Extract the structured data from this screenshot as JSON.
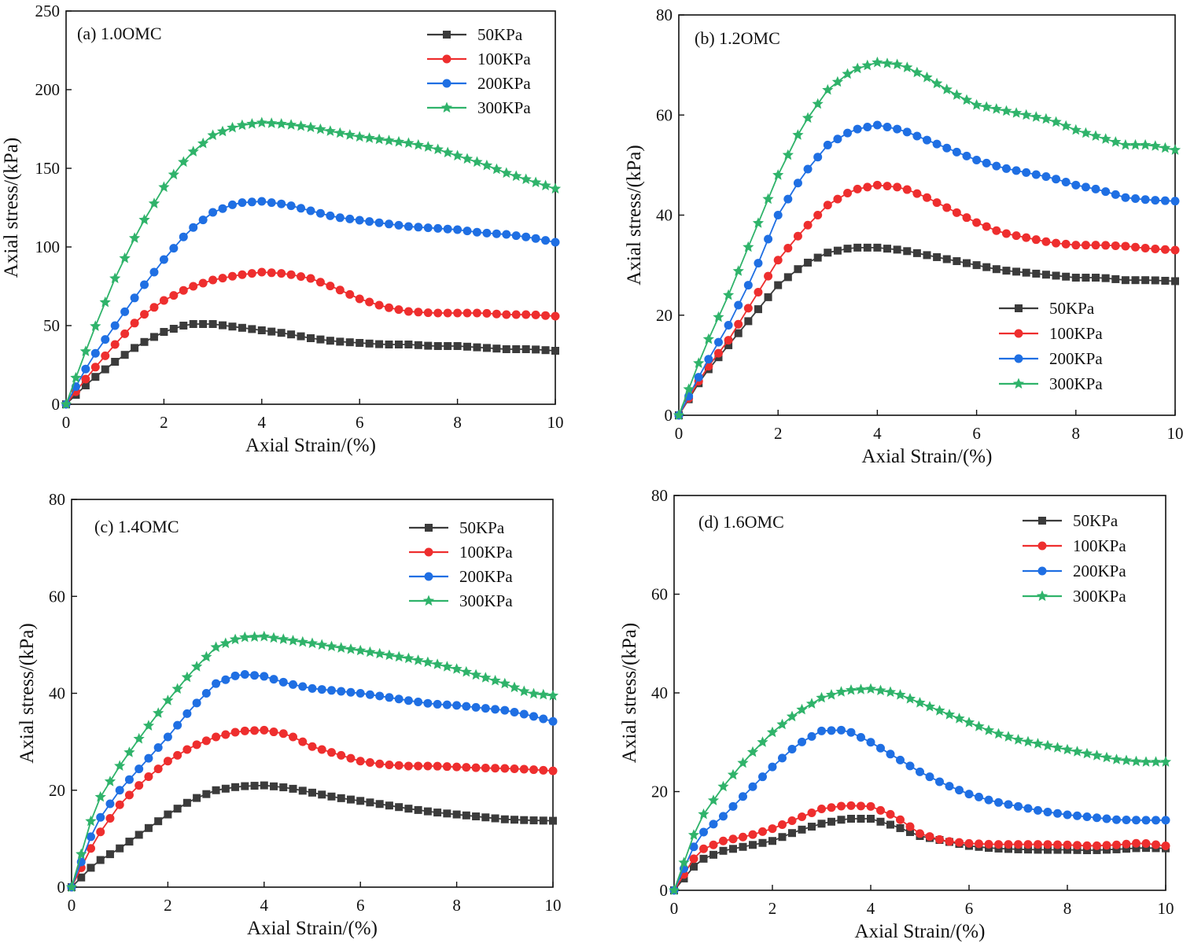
{
  "colors": {
    "50KPa": "#3b3b3b",
    "100KPa": "#ee2e2e",
    "200KPa": "#1f6fe3",
    "300KPa": "#2fb36a"
  },
  "chart_data": [
    {
      "type": "line",
      "panel_label": "(a) 1.0OMC",
      "xlabel": "Axial Strain/(%)",
      "ylabel": "Axial stress/(kPa)",
      "xlim": [
        0,
        10
      ],
      "ylim": [
        0,
        250
      ],
      "x_ticks": [
        0,
        2,
        4,
        6,
        8,
        10
      ],
      "y_ticks": [
        0,
        50,
        100,
        150,
        200,
        250
      ],
      "legend_position": "top-right",
      "x": [
        0,
        0.5,
        1,
        1.5,
        2,
        2.5,
        3,
        3.5,
        4,
        4.5,
        5,
        5.5,
        6,
        6.5,
        7,
        7.5,
        8,
        8.5,
        9,
        9.5,
        10
      ],
      "series": [
        {
          "name": "50KPa",
          "marker": "square",
          "values": [
            0,
            15,
            27,
            38,
            46,
            51,
            51,
            49,
            47,
            45,
            42,
            40,
            39,
            38,
            38,
            37,
            37,
            36,
            35,
            35,
            34
          ]
        },
        {
          "name": "100KPa",
          "marker": "circle",
          "values": [
            0,
            20,
            38,
            55,
            66,
            74,
            79,
            82,
            84,
            83,
            80,
            74,
            67,
            62,
            59,
            58,
            58,
            58,
            57,
            57,
            56
          ]
        },
        {
          "name": "200KPa",
          "marker": "circle",
          "values": [
            0,
            28,
            50,
            72,
            92,
            110,
            122,
            128,
            129,
            127,
            123,
            119,
            117,
            115,
            113,
            112,
            111,
            109,
            108,
            106,
            103
          ]
        },
        {
          "name": "300KPa",
          "marker": "star",
          "values": [
            0,
            42,
            80,
            112,
            138,
            158,
            171,
            177,
            179,
            178,
            176,
            173,
            170,
            168,
            166,
            163,
            158,
            153,
            147,
            142,
            137
          ]
        }
      ]
    },
    {
      "type": "line",
      "panel_label": "(b) 1.2OMC",
      "xlabel": "Axial Strain/(%)",
      "ylabel": "Axial stress/(kPa)",
      "xlim": [
        0,
        10
      ],
      "ylim": [
        0,
        80
      ],
      "x_ticks": [
        0,
        2,
        4,
        6,
        8,
        10
      ],
      "y_ticks": [
        0,
        20,
        40,
        60,
        80
      ],
      "legend_position": "bottom-right",
      "x": [
        0,
        0.5,
        1,
        1.5,
        2,
        2.5,
        3,
        3.5,
        4,
        4.5,
        5,
        5.5,
        6,
        6.5,
        7,
        7.5,
        8,
        8.5,
        9,
        9.5,
        10
      ],
      "series": [
        {
          "name": "50KPa",
          "marker": "square",
          "values": [
            0,
            8,
            14,
            20,
            26,
            30,
            32.5,
            33.5,
            33.5,
            33,
            32,
            31,
            30,
            29,
            28.5,
            28,
            27.5,
            27.5,
            27,
            27,
            26.8
          ]
        },
        {
          "name": "100KPa",
          "marker": "circle",
          "values": [
            0,
            8.5,
            15,
            23,
            31,
            37,
            42,
            45,
            46,
            45.5,
            43.5,
            41,
            38.5,
            36.5,
            35.5,
            34.5,
            34,
            34,
            33.8,
            33.3,
            33
          ]
        },
        {
          "name": "200KPa",
          "marker": "circle",
          "values": [
            0,
            9.5,
            18,
            28,
            40,
            48,
            54,
            57,
            58,
            57,
            55,
            53,
            51,
            49.5,
            48.5,
            47.5,
            46,
            45,
            43.5,
            43,
            42.8
          ]
        },
        {
          "name": "300KPa",
          "marker": "star",
          "values": [
            0,
            13,
            24,
            36,
            48,
            58,
            65,
            69,
            70.5,
            70,
            67.5,
            64.5,
            62,
            61,
            60,
            59,
            57,
            55.5,
            54,
            54,
            53
          ]
        }
      ]
    },
    {
      "type": "line",
      "panel_label": "(c) 1.4OMC",
      "xlabel": "Axial Strain/(%)",
      "ylabel": "Axial stress/(kPa)",
      "xlim": [
        0,
        10
      ],
      "ylim": [
        0,
        80
      ],
      "x_ticks": [
        0,
        2,
        4,
        6,
        8,
        10
      ],
      "y_ticks": [
        0,
        20,
        40,
        60,
        80
      ],
      "legend_position": "top-right",
      "x": [
        0,
        0.5,
        1,
        1.5,
        2,
        2.5,
        3,
        3.5,
        4,
        4.5,
        5,
        5.5,
        6,
        6.5,
        7,
        7.5,
        8,
        8.5,
        9,
        9.5,
        10
      ],
      "series": [
        {
          "name": "50KPa",
          "marker": "square",
          "values": [
            0,
            5,
            8,
            11.5,
            15,
            18,
            20,
            20.8,
            21,
            20.5,
            19.5,
            18.5,
            17.8,
            17,
            16.2,
            15.5,
            15,
            14.5,
            14,
            13.8,
            13.7
          ]
        },
        {
          "name": "100KPa",
          "marker": "circle",
          "values": [
            0,
            10,
            17,
            22,
            26,
            29,
            31,
            32.2,
            32.4,
            31.5,
            29,
            27.5,
            26,
            25.3,
            25,
            25,
            24.8,
            24.6,
            24.5,
            24.3,
            24
          ]
        },
        {
          "name": "200KPa",
          "marker": "circle",
          "values": [
            0,
            13,
            20,
            25.5,
            31,
            37,
            42,
            44,
            43.5,
            42,
            41,
            40.5,
            40,
            39.3,
            38.5,
            37.8,
            37.5,
            37,
            36.5,
            35.5,
            34.2
          ]
        },
        {
          "name": "300KPa",
          "marker": "star",
          "values": [
            0,
            17,
            25,
            32,
            38.5,
            44.5,
            49.5,
            51.5,
            51.7,
            51,
            50.3,
            49.5,
            48.8,
            48,
            47.2,
            46.2,
            45,
            43.5,
            42,
            40,
            39.5
          ]
        }
      ]
    },
    {
      "type": "line",
      "panel_label": "(d) 1.6OMC",
      "xlabel": "Axial Strain/(%)",
      "ylabel": "Axial stress/(kPa)",
      "xlim": [
        0,
        10
      ],
      "ylim": [
        0,
        80
      ],
      "x_ticks": [
        0,
        2,
        4,
        6,
        8,
        10
      ],
      "y_ticks": [
        0,
        20,
        40,
        60,
        80
      ],
      "legend_position": "top-right",
      "x": [
        0,
        0.5,
        1,
        1.5,
        2,
        2.5,
        3,
        3.5,
        4,
        4.5,
        5,
        5.5,
        6,
        6.5,
        7,
        7.5,
        8,
        8.5,
        9,
        9.5,
        10
      ],
      "series": [
        {
          "name": "50KPa",
          "marker": "square",
          "values": [
            0,
            6,
            8,
            9,
            10,
            12,
            13.5,
            14.5,
            14.5,
            13,
            11,
            10,
            9,
            8.5,
            8.3,
            8.2,
            8.2,
            8.1,
            8.3,
            8.6,
            8.5
          ]
        },
        {
          "name": "100KPa",
          "marker": "circle",
          "values": [
            0,
            8,
            10,
            11,
            12.5,
            14.5,
            16.5,
            17.2,
            17,
            15,
            11.5,
            10,
            9.5,
            9.3,
            9.3,
            9.3,
            9.2,
            9,
            9.2,
            9.6,
            9
          ]
        },
        {
          "name": "200KPa",
          "marker": "circle",
          "values": [
            0,
            11,
            15,
            20,
            25,
            29.5,
            32.3,
            32.5,
            30,
            27,
            24,
            21.5,
            19.5,
            18,
            17,
            16,
            15.3,
            14.8,
            14.3,
            14.2,
            14.2
          ]
        },
        {
          "name": "300KPa",
          "marker": "star",
          "values": [
            0,
            14,
            21,
            27,
            32,
            36,
            39,
            40.5,
            40.8,
            40,
            38,
            36,
            34,
            32,
            30.5,
            29.5,
            28.5,
            27.5,
            26.5,
            26,
            26
          ]
        }
      ]
    }
  ]
}
